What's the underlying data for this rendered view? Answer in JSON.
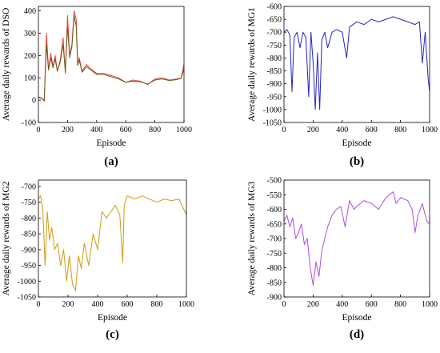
{
  "chart_data": [
    {
      "type": "line",
      "panel_label": "(a)",
      "xlabel": "Episode",
      "ylabel": "Average daily rewards of DSO",
      "xlim": [
        0,
        1000
      ],
      "ylim": [
        -100,
        420
      ],
      "xticks": [
        0,
        200,
        400,
        600,
        800,
        1000
      ],
      "yticks": [
        -100,
        0,
        100,
        200,
        300,
        400
      ],
      "grid": false,
      "colors": [
        "#e8453c",
        "#6e5a1e"
      ],
      "series": [
        {
          "name": "",
          "color": "#e8453c",
          "x": [
            0,
            20,
            40,
            55,
            70,
            85,
            100,
            115,
            130,
            150,
            170,
            185,
            200,
            215,
            230,
            245,
            260,
            270,
            280,
            300,
            330,
            360,
            400,
            450,
            500,
            550,
            600,
            650,
            700,
            750,
            800,
            850,
            900,
            950,
            980,
            1000
          ],
          "y": [
            15,
            10,
            -5,
            300,
            140,
            210,
            150,
            200,
            130,
            180,
            280,
            120,
            380,
            200,
            250,
            400,
            360,
            160,
            190,
            130,
            160,
            140,
            120,
            120,
            110,
            100,
            80,
            90,
            85,
            70,
            95,
            100,
            90,
            95,
            100,
            160
          ]
        },
        {
          "name": "",
          "color": "#6e5a1e",
          "x": [
            0,
            20,
            40,
            55,
            70,
            85,
            100,
            115,
            130,
            150,
            170,
            185,
            200,
            215,
            230,
            245,
            260,
            270,
            280,
            300,
            330,
            360,
            400,
            450,
            500,
            550,
            600,
            650,
            700,
            750,
            800,
            850,
            900,
            950,
            980,
            1000
          ],
          "y": [
            12,
            8,
            0,
            250,
            135,
            190,
            145,
            185,
            130,
            170,
            250,
            125,
            330,
            190,
            240,
            380,
            330,
            155,
            180,
            125,
            150,
            135,
            115,
            115,
            105,
            95,
            80,
            85,
            82,
            72,
            90,
            95,
            88,
            92,
            98,
            140
          ]
        }
      ]
    },
    {
      "type": "line",
      "panel_label": "(b)",
      "xlabel": "Episode",
      "ylabel": "Average daily rewards of MG1",
      "xlim": [
        0,
        1000
      ],
      "ylim": [
        -1050,
        -600
      ],
      "xticks": [
        0,
        200,
        400,
        600,
        800,
        1000
      ],
      "yticks": [
        -1050,
        -1000,
        -950,
        -900,
        -850,
        -800,
        -750,
        -700,
        -650,
        -600
      ],
      "grid": false,
      "colors": [
        "#2424c8"
      ],
      "series": [
        {
          "name": "",
          "color": "#2424c8",
          "x": [
            0,
            20,
            40,
            55,
            70,
            90,
            110,
            130,
            150,
            170,
            185,
            200,
            215,
            230,
            245,
            260,
            280,
            300,
            330,
            360,
            400,
            430,
            450,
            500,
            550,
            600,
            650,
            700,
            750,
            800,
            850,
            900,
            930,
            950,
            970,
            990,
            1000
          ],
          "y": [
            -700,
            -690,
            -710,
            -930,
            -720,
            -700,
            -760,
            -700,
            -720,
            -950,
            -700,
            -820,
            -1000,
            -780,
            -1000,
            -730,
            -700,
            -760,
            -700,
            -690,
            -700,
            -800,
            -680,
            -660,
            -670,
            -650,
            -660,
            -650,
            -640,
            -650,
            -660,
            -670,
            -660,
            -820,
            -700,
            -880,
            -930
          ]
        }
      ]
    },
    {
      "type": "line",
      "panel_label": "(c)",
      "xlabel": "Episode",
      "ylabel": "Average daily rewards of MG2",
      "xlim": [
        0,
        1000
      ],
      "ylim": [
        -1050,
        -680
      ],
      "xticks": [
        0,
        200,
        400,
        600,
        800,
        1000
      ],
      "yticks": [
        -1050,
        -1000,
        -950,
        -900,
        -850,
        -800,
        -750,
        -700
      ],
      "grid": false,
      "colors": [
        "#d19a10"
      ],
      "series": [
        {
          "name": "",
          "color": "#d19a10",
          "x": [
            0,
            15,
            30,
            45,
            60,
            75,
            90,
            110,
            130,
            150,
            170,
            190,
            210,
            230,
            250,
            270,
            290,
            310,
            340,
            370,
            400,
            430,
            460,
            490,
            520,
            550,
            570,
            580,
            600,
            650,
            700,
            750,
            800,
            850,
            900,
            950,
            990,
            1000
          ],
          "y": [
            -740,
            -730,
            -770,
            -950,
            -780,
            -870,
            -830,
            -900,
            -880,
            -950,
            -900,
            -1000,
            -920,
            -1010,
            -1030,
            -920,
            -960,
            -880,
            -950,
            -850,
            -900,
            -780,
            -800,
            -780,
            -760,
            -790,
            -940,
            -760,
            -730,
            -740,
            -730,
            -740,
            -750,
            -740,
            -745,
            -740,
            -780,
            -790
          ]
        }
      ]
    },
    {
      "type": "line",
      "panel_label": "(d)",
      "xlabel": "Episode",
      "ylabel": "Average daily rewards of MG3",
      "xlim": [
        0,
        1000
      ],
      "ylim": [
        -900,
        -500
      ],
      "xticks": [
        0,
        200,
        400,
        600,
        800,
        1000
      ],
      "yticks": [
        -900,
        -850,
        -800,
        -750,
        -700,
        -650,
        -600,
        -550,
        -500
      ],
      "grid": false,
      "colors": [
        "#b04ce0"
      ],
      "series": [
        {
          "name": "",
          "color": "#b04ce0",
          "x": [
            0,
            20,
            40,
            60,
            80,
            100,
            120,
            140,
            160,
            180,
            200,
            220,
            240,
            260,
            280,
            300,
            330,
            360,
            390,
            420,
            450,
            480,
            500,
            550,
            600,
            650,
            700,
            750,
            770,
            800,
            850,
            880,
            900,
            920,
            950,
            980,
            1000
          ],
          "y": [
            -640,
            -620,
            -660,
            -630,
            -700,
            -680,
            -650,
            -720,
            -700,
            -800,
            -860,
            -780,
            -830,
            -740,
            -700,
            -660,
            -620,
            -600,
            -590,
            -660,
            -570,
            -600,
            -590,
            -570,
            -580,
            -600,
            -560,
            -540,
            -580,
            -560,
            -570,
            -600,
            -680,
            -620,
            -580,
            -640,
            -650
          ]
        }
      ]
    }
  ]
}
